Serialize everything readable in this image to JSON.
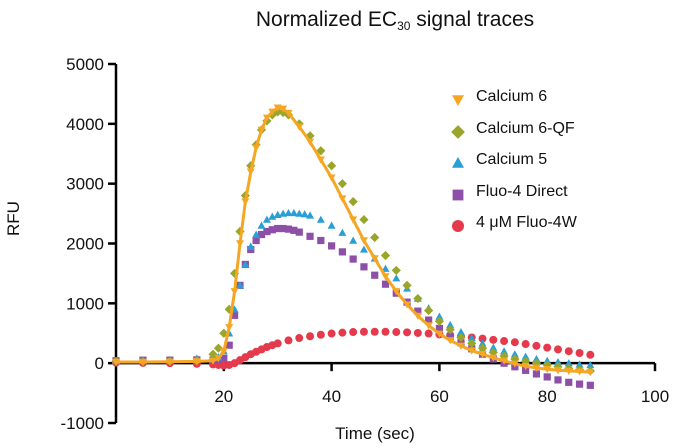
{
  "chart_data": {
    "type": "line",
    "title_main": "Normalized EC",
    "title_sub": "30",
    "title_rest": " signal traces",
    "xlabel": "Time (sec)",
    "ylabel": "RFU",
    "xlim": [
      0,
      100
    ],
    "ylim": [
      -1000,
      5000
    ],
    "xticks": [
      20,
      40,
      60,
      80,
      100
    ],
    "yticks": [
      -1000,
      0,
      1000,
      2000,
      3000,
      4000,
      5000
    ],
    "grid": false,
    "legend_position": "top-right",
    "series": [
      {
        "name": "Calcium 6",
        "color": "#f5a623",
        "marker": "triangle-down",
        "line": true,
        "points": [
          [
            0,
            20
          ],
          [
            5,
            20
          ],
          [
            10,
            25
          ],
          [
            15,
            30
          ],
          [
            18,
            40
          ],
          [
            19,
            80
          ],
          [
            20,
            200
          ],
          [
            21,
            600
          ],
          [
            22,
            1200
          ],
          [
            23,
            2000
          ],
          [
            24,
            2700
          ],
          [
            25,
            3200
          ],
          [
            26,
            3600
          ],
          [
            27,
            3900
          ],
          [
            28,
            4100
          ],
          [
            29,
            4200
          ],
          [
            30,
            4270
          ],
          [
            31,
            4250
          ],
          [
            32,
            4180
          ],
          [
            34,
            3950
          ],
          [
            36,
            3700
          ],
          [
            38,
            3400
          ],
          [
            40,
            3100
          ],
          [
            42,
            2750
          ],
          [
            44,
            2400
          ],
          [
            46,
            2050
          ],
          [
            48,
            1750
          ],
          [
            50,
            1450
          ],
          [
            52,
            1200
          ],
          [
            54,
            980
          ],
          [
            56,
            790
          ],
          [
            58,
            630
          ],
          [
            60,
            490
          ],
          [
            62,
            380
          ],
          [
            64,
            290
          ],
          [
            66,
            210
          ],
          [
            68,
            150
          ],
          [
            70,
            90
          ],
          [
            72,
            40
          ],
          [
            74,
            -10
          ],
          [
            76,
            -50
          ],
          [
            78,
            -80
          ],
          [
            80,
            -100
          ],
          [
            82,
            -120
          ],
          [
            84,
            -130
          ],
          [
            86,
            -140
          ],
          [
            88,
            -150
          ]
        ]
      },
      {
        "name": "Calcium 6-QF",
        "color": "#9aa62a",
        "marker": "diamond",
        "line": false,
        "points": [
          [
            0,
            30
          ],
          [
            5,
            25
          ],
          [
            10,
            30
          ],
          [
            15,
            40
          ],
          [
            18,
            150
          ],
          [
            19,
            250
          ],
          [
            20,
            500
          ],
          [
            21,
            900
          ],
          [
            22,
            1500
          ],
          [
            23,
            2200
          ],
          [
            24,
            2800
          ],
          [
            25,
            3300
          ],
          [
            26,
            3650
          ],
          [
            27,
            3900
          ],
          [
            28,
            4050
          ],
          [
            29,
            4150
          ],
          [
            30,
            4200
          ],
          [
            31,
            4190
          ],
          [
            32,
            4150
          ],
          [
            34,
            4000
          ],
          [
            36,
            3800
          ],
          [
            38,
            3550
          ],
          [
            40,
            3300
          ],
          [
            42,
            3000
          ],
          [
            44,
            2700
          ],
          [
            46,
            2400
          ],
          [
            48,
            2100
          ],
          [
            50,
            1800
          ],
          [
            52,
            1550
          ],
          [
            54,
            1300
          ],
          [
            56,
            1080
          ],
          [
            58,
            880
          ],
          [
            60,
            700
          ],
          [
            62,
            560
          ],
          [
            64,
            430
          ],
          [
            66,
            330
          ],
          [
            68,
            250
          ],
          [
            70,
            180
          ],
          [
            72,
            120
          ],
          [
            74,
            70
          ],
          [
            76,
            30
          ],
          [
            78,
            0
          ],
          [
            80,
            -30
          ],
          [
            82,
            -60
          ],
          [
            84,
            -90
          ],
          [
            86,
            -110
          ],
          [
            88,
            -130
          ]
        ]
      },
      {
        "name": "Calcium 5",
        "color": "#2a9fd6",
        "marker": "triangle-up",
        "line": false,
        "points": [
          [
            0,
            40
          ],
          [
            5,
            50
          ],
          [
            10,
            60
          ],
          [
            15,
            80
          ],
          [
            18,
            90
          ],
          [
            19,
            100
          ],
          [
            20,
            200
          ],
          [
            21,
            500
          ],
          [
            22,
            900
          ],
          [
            23,
            1300
          ],
          [
            24,
            1650
          ],
          [
            25,
            1950
          ],
          [
            26,
            2150
          ],
          [
            27,
            2300
          ],
          [
            28,
            2400
          ],
          [
            29,
            2450
          ],
          [
            30,
            2480
          ],
          [
            31,
            2500
          ],
          [
            32,
            2510
          ],
          [
            33,
            2510
          ],
          [
            34,
            2500
          ],
          [
            35,
            2490
          ],
          [
            36,
            2470
          ],
          [
            38,
            2400
          ],
          [
            40,
            2300
          ],
          [
            42,
            2180
          ],
          [
            44,
            2050
          ],
          [
            46,
            1900
          ],
          [
            48,
            1750
          ],
          [
            50,
            1580
          ],
          [
            52,
            1420
          ],
          [
            54,
            1250
          ],
          [
            56,
            1080
          ],
          [
            58,
            920
          ],
          [
            60,
            780
          ],
          [
            62,
            640
          ],
          [
            64,
            520
          ],
          [
            66,
            420
          ],
          [
            68,
            330
          ],
          [
            70,
            260
          ],
          [
            72,
            200
          ],
          [
            74,
            150
          ],
          [
            76,
            110
          ],
          [
            78,
            70
          ],
          [
            80,
            40
          ],
          [
            82,
            20
          ],
          [
            84,
            0
          ],
          [
            86,
            -20
          ],
          [
            88,
            -30
          ]
        ]
      },
      {
        "name": "Fluo-4 Direct",
        "color": "#8e4fa8",
        "marker": "square",
        "line": false,
        "points": [
          [
            0,
            40
          ],
          [
            5,
            50
          ],
          [
            10,
            50
          ],
          [
            15,
            55
          ],
          [
            18,
            50
          ],
          [
            19,
            60
          ],
          [
            20,
            80
          ],
          [
            21,
            300
          ],
          [
            22,
            800
          ],
          [
            23,
            1300
          ],
          [
            24,
            1650
          ],
          [
            25,
            1900
          ],
          [
            26,
            2050
          ],
          [
            27,
            2150
          ],
          [
            28,
            2200
          ],
          [
            29,
            2230
          ],
          [
            30,
            2250
          ],
          [
            31,
            2250
          ],
          [
            32,
            2240
          ],
          [
            33,
            2220
          ],
          [
            34,
            2190
          ],
          [
            36,
            2120
          ],
          [
            38,
            2050
          ],
          [
            40,
            1960
          ],
          [
            42,
            1860
          ],
          [
            44,
            1740
          ],
          [
            46,
            1610
          ],
          [
            48,
            1470
          ],
          [
            50,
            1320
          ],
          [
            52,
            1170
          ],
          [
            54,
            1020
          ],
          [
            56,
            870
          ],
          [
            58,
            720
          ],
          [
            60,
            580
          ],
          [
            62,
            450
          ],
          [
            64,
            340
          ],
          [
            66,
            240
          ],
          [
            68,
            150
          ],
          [
            70,
            70
          ],
          [
            72,
            0
          ],
          [
            74,
            -60
          ],
          [
            76,
            -120
          ],
          [
            78,
            -180
          ],
          [
            80,
            -230
          ],
          [
            82,
            -280
          ],
          [
            84,
            -320
          ],
          [
            86,
            -350
          ],
          [
            88,
            -370
          ]
        ]
      },
      {
        "name": "4 μM Fluo-4W",
        "color": "#e5394c",
        "marker": "circle",
        "line": false,
        "points": [
          [
            0,
            10
          ],
          [
            5,
            5
          ],
          [
            10,
            0
          ],
          [
            15,
            -10
          ],
          [
            18,
            -20
          ],
          [
            19,
            -30
          ],
          [
            20,
            -40
          ],
          [
            21,
            -30
          ],
          [
            22,
            0
          ],
          [
            23,
            50
          ],
          [
            24,
            100
          ],
          [
            25,
            150
          ],
          [
            26,
            190
          ],
          [
            27,
            230
          ],
          [
            28,
            270
          ],
          [
            29,
            300
          ],
          [
            30,
            330
          ],
          [
            32,
            380
          ],
          [
            34,
            420
          ],
          [
            36,
            450
          ],
          [
            38,
            475
          ],
          [
            40,
            495
          ],
          [
            42,
            510
          ],
          [
            44,
            520
          ],
          [
            46,
            525
          ],
          [
            48,
            525
          ],
          [
            50,
            525
          ],
          [
            52,
            520
          ],
          [
            54,
            515
          ],
          [
            56,
            505
          ],
          [
            58,
            495
          ],
          [
            60,
            480
          ],
          [
            62,
            465
          ],
          [
            64,
            450
          ],
          [
            66,
            430
          ],
          [
            68,
            410
          ],
          [
            70,
            390
          ],
          [
            72,
            370
          ],
          [
            74,
            350
          ],
          [
            76,
            320
          ],
          [
            78,
            290
          ],
          [
            80,
            260
          ],
          [
            82,
            230
          ],
          [
            84,
            200
          ],
          [
            86,
            170
          ],
          [
            88,
            140
          ]
        ]
      }
    ]
  }
}
